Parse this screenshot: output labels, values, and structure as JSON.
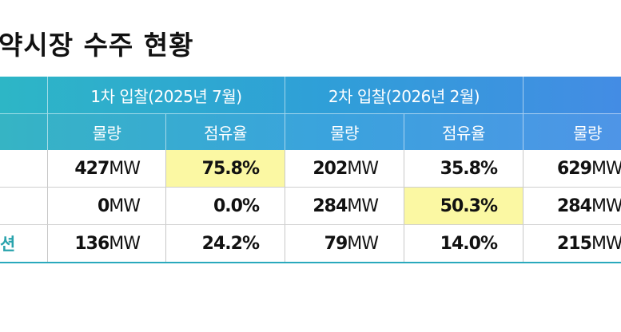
{
  "title": "약시장 수주 현황",
  "header": {
    "groups": [
      "1차 입찰(2025년 7월)",
      "2차 입찰(2026년 2월)",
      ""
    ],
    "columns": [
      "물량",
      "점유율",
      "물량",
      "점유율",
      "물량"
    ]
  },
  "rows": [
    {
      "label": "",
      "q1": "427",
      "s1": "75.8%",
      "q2": "202",
      "s2": "35.8%",
      "q3": "629",
      "unit3": "MW"
    },
    {
      "label": "",
      "q1": "0",
      "s1": "0.0%",
      "q2": "284",
      "s2": "50.3%",
      "q3": "284",
      "unit3": "MW"
    },
    {
      "label": "션",
      "q1": "136",
      "s1": "24.2%",
      "q2": "79",
      "s2": "14.0%",
      "q3": "215",
      "unit3": "MW"
    }
  ],
  "unit": "MW",
  "colors": {
    "header_start": "#2db6c6",
    "header_end": "#4a86e8",
    "highlight": "#fbf8a3",
    "accent": "#29a3ad"
  }
}
